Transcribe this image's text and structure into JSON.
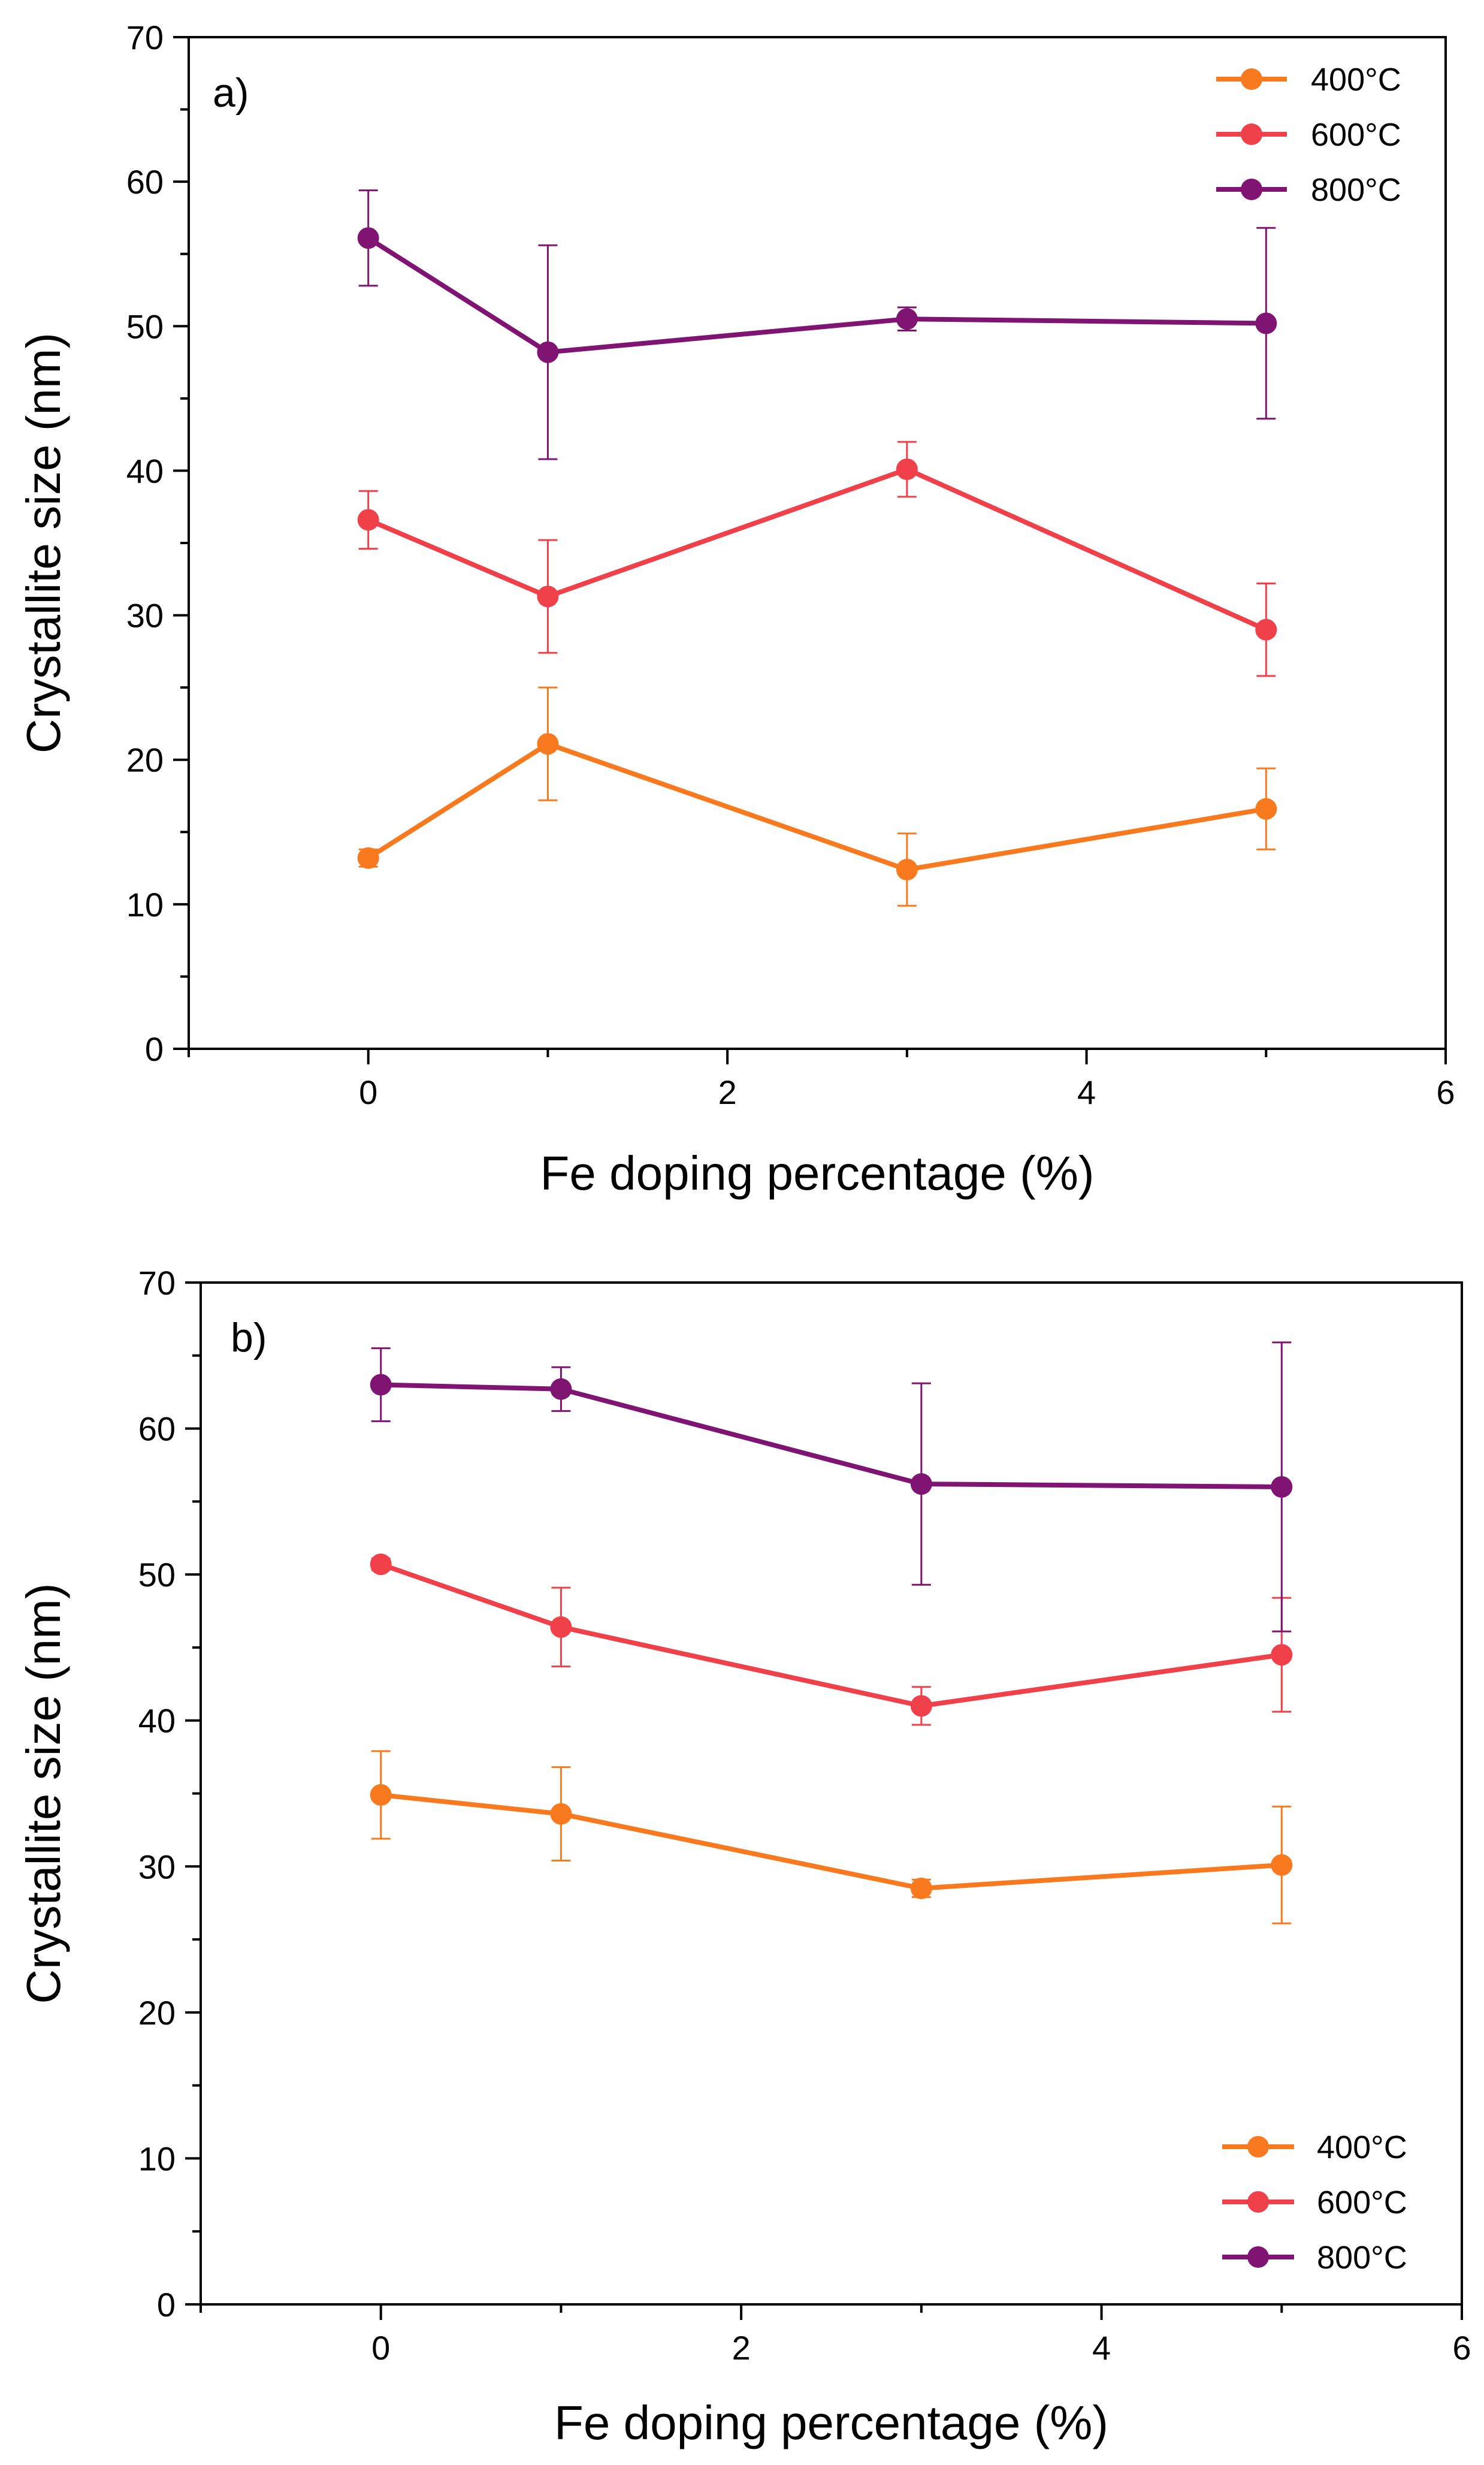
{
  "figure": {
    "description_ids": [
      "panel-a",
      "panel-b"
    ]
  },
  "chart_data": [
    {
      "type": "line",
      "panel_label": "a)",
      "xlabel": "Fe doping percentage (%)",
      "ylabel": "Crystallite size (nm)",
      "xlim": [
        -1,
        6
      ],
      "ylim": [
        0,
        70
      ],
      "xticks": [
        0,
        2,
        4,
        6
      ],
      "yticks": [
        0,
        10,
        20,
        30,
        40,
        50,
        60,
        70
      ],
      "x": [
        0,
        1,
        3,
        5
      ],
      "legend_position": "top-right",
      "series": [
        {
          "name": "400°C",
          "color": "#F97A1E",
          "values": [
            13.2,
            21.1,
            12.4,
            16.6
          ],
          "errors": [
            0.6,
            3.9,
            2.5,
            2.8
          ]
        },
        {
          "name": "600°C",
          "color": "#F0404A",
          "values": [
            36.6,
            31.3,
            40.1,
            29.0
          ],
          "errors": [
            2.0,
            3.9,
            1.9,
            3.2
          ]
        },
        {
          "name": "800°C",
          "color": "#7F1472",
          "values": [
            56.1,
            48.2,
            50.5,
            50.2
          ],
          "errors": [
            3.3,
            7.4,
            0.8,
            6.6
          ]
        }
      ]
    },
    {
      "type": "line",
      "panel_label": "b)",
      "xlabel": "Fe doping percentage (%)",
      "ylabel": "Crystallite size (nm)",
      "xlim": [
        -1,
        6
      ],
      "ylim": [
        0,
        70
      ],
      "xticks": [
        0,
        2,
        4,
        6
      ],
      "yticks": [
        0,
        10,
        20,
        30,
        40,
        50,
        60,
        70
      ],
      "x": [
        0,
        1,
        3,
        5
      ],
      "legend_position": "bottom-right",
      "series": [
        {
          "name": "400°C",
          "color": "#F97A1E",
          "values": [
            34.9,
            33.6,
            28.5,
            30.1
          ],
          "errors": [
            3.0,
            3.2,
            0.6,
            4.0
          ]
        },
        {
          "name": "600°C",
          "color": "#F0404A",
          "values": [
            50.7,
            46.4,
            41.0,
            44.5
          ],
          "errors": [
            0.4,
            2.7,
            1.3,
            3.9
          ]
        },
        {
          "name": "800°C",
          "color": "#7F1472",
          "values": [
            63.0,
            62.7,
            56.2,
            56.0
          ],
          "errors": [
            2.5,
            1.5,
            6.9,
            9.9
          ]
        }
      ]
    }
  ]
}
